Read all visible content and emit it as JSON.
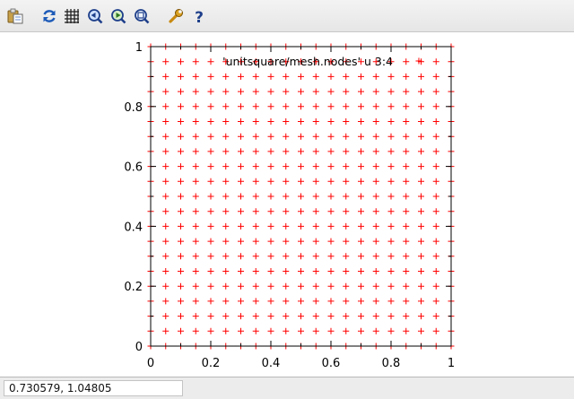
{
  "toolbar": {
    "buttons": [
      {
        "icon": "copy-to-clipboard-icon"
      },
      {
        "icon": "replot-icon"
      },
      {
        "icon": "grid-icon"
      },
      {
        "icon": "zoom-previous-icon"
      },
      {
        "icon": "zoom-next-icon"
      },
      {
        "icon": "unzoom-icon"
      },
      {
        "icon": "settings-icon"
      },
      {
        "icon": "help-icon"
      }
    ]
  },
  "status": {
    "coordinates": "0.730579,  1.04805"
  },
  "chart_data": {
    "type": "scatter",
    "series": [
      {
        "name": "'unitsquare/mesh.nodes' u 3:4",
        "marker": "+",
        "color": "#ff0000",
        "grid_points": [
          0,
          0.05,
          0.1,
          0.15,
          0.2,
          0.25,
          0.3,
          0.35,
          0.4,
          0.45,
          0.5,
          0.55,
          0.6,
          0.65,
          0.7,
          0.75,
          0.8,
          0.85,
          0.9,
          0.95,
          1
        ]
      }
    ],
    "xlim": [
      0,
      1
    ],
    "ylim": [
      0,
      1
    ],
    "x_ticks": [
      "0",
      "0.2",
      "0.4",
      "0.6",
      "0.8",
      "1"
    ],
    "y_ticks": [
      "0",
      "0.2",
      "0.4",
      "0.6",
      "0.8",
      "1"
    ],
    "legend_position": "top-right"
  }
}
